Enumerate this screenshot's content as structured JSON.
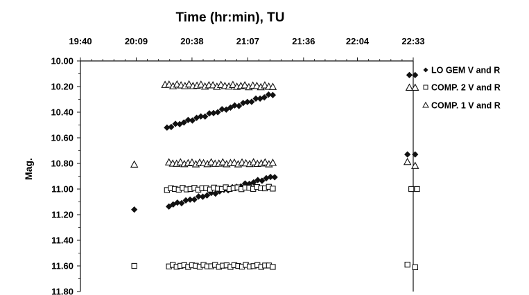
{
  "chart_data": {
    "type": "scatter",
    "title": "Time (hr:min), TU",
    "xlabel": "",
    "ylabel": "Mag.",
    "x_axis_position": "top",
    "x_tick_labels": [
      "19:40",
      "20:09",
      "20:38",
      "21:07",
      "21:36",
      "22:04",
      "22:33"
    ],
    "x_ticks_minutes": [
      1180,
      1209,
      1238,
      1267,
      1296,
      1324,
      1353
    ],
    "xlim_minutes": [
      1180,
      1353
    ],
    "y_tick_labels": [
      "10.00",
      "10.20",
      "10.40",
      "10.60",
      "10.80",
      "11.00",
      "11.20",
      "11.40",
      "11.60",
      "11.80"
    ],
    "ylim": [
      10.0,
      11.8
    ],
    "y_inverted": true,
    "legend_position": "right",
    "series": [
      {
        "name": "LO GEM V and R",
        "marker": "diamond",
        "groups": [
          {
            "x": [
              1225,
              1280
            ],
            "y": [
              10.52,
              10.26
            ],
            "n": 26
          },
          {
            "x": [
              1226,
              1281
            ],
            "y": [
              11.13,
              10.9
            ],
            "n": 26
          },
          {
            "x": [
              1208
            ],
            "y": [
              11.16
            ],
            "n": 1
          },
          {
            "x": [
              1351,
              1354
            ],
            "y": [
              10.11,
              10.11
            ],
            "n": 2
          },
          {
            "x": [
              1350,
              1354
            ],
            "y": [
              10.73,
              10.73
            ],
            "n": 2
          }
        ]
      },
      {
        "name": "COMP. 2 V and R",
        "marker": "square",
        "groups": [
          {
            "x": [
              1225,
              1280
            ],
            "y": [
              11.0,
              10.99
            ],
            "n": 28
          },
          {
            "x": [
              1226,
              1280
            ],
            "y": [
              11.6,
              11.6
            ],
            "n": 28
          },
          {
            "x": [
              1208
            ],
            "y": [
              11.6
            ],
            "n": 1
          },
          {
            "x": [
              1350,
              1354
            ],
            "y": [
              11.59,
              11.61
            ],
            "n": 2
          },
          {
            "x": [
              1352,
              1355
            ],
            "y": [
              11.0,
              11.0
            ],
            "n": 2
          }
        ]
      },
      {
        "name": "COMP. 1 V and R",
        "marker": "triangle",
        "groups": [
          {
            "x": [
              1224,
              1280
            ],
            "y": [
              10.19,
              10.2
            ],
            "n": 28
          },
          {
            "x": [
              1226,
              1280
            ],
            "y": [
              10.8,
              10.8
            ],
            "n": 28
          },
          {
            "x": [
              1208
            ],
            "y": [
              10.81
            ],
            "n": 1
          },
          {
            "x": [
              1351,
              1354
            ],
            "y": [
              10.21,
              10.21
            ],
            "n": 2
          },
          {
            "x": [
              1350,
              1354
            ],
            "y": [
              10.79,
              10.82
            ],
            "n": 2
          }
        ]
      }
    ]
  }
}
